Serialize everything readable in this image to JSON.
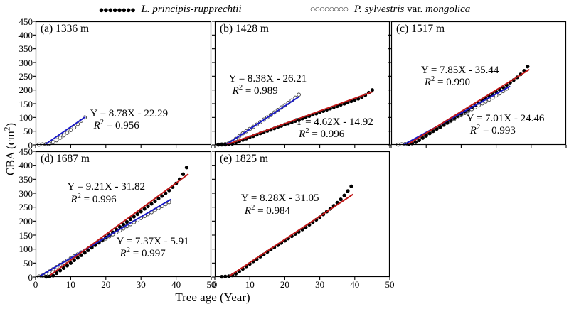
{
  "figure": {
    "x_axis_label": "Tree age (Year)",
    "y_axis_label_parts": {
      "pre": "CBA (cm",
      "sup": "2",
      "post": ")"
    }
  },
  "legend": {
    "entries": [
      {
        "marker": "filled-circles",
        "glyph": "●●●●●●●●",
        "label_parts": [
          {
            "text": "L. principis-rupprechtii",
            "italic": true
          }
        ]
      },
      {
        "marker": "open-circles",
        "glyph": "○○○○○○○○",
        "label_parts": [
          {
            "text": "P. sylvestris",
            "italic": true
          },
          {
            "text": " var. ",
            "italic": false
          },
          {
            "text": "mongolica",
            "italic": true
          }
        ]
      }
    ]
  },
  "colors": {
    "filled_series_line": "#c01818",
    "open_series_line": "#1818c8",
    "dot_fill": "#000000",
    "open_dot_stroke": "#4a4a4a",
    "axis": "#000000"
  },
  "chart_data": {
    "type": "scatter",
    "xlabel": "Tree age (Year)",
    "ylabel": "CBA (cm2)",
    "xlim": [
      0,
      50
    ],
    "ylim": [
      0,
      450
    ],
    "x_ticks": [
      0,
      10,
      20,
      30,
      40,
      50
    ],
    "y_ticks": [
      0,
      50,
      100,
      150,
      200,
      250,
      300,
      350,
      400,
      450
    ],
    "grid": false,
    "legend_position": "top-center",
    "panels": [
      {
        "id": "a",
        "title": "(a) 1336 m",
        "show_y_tick_labels": true,
        "show_x_tick_labels": false,
        "series": [
          {
            "name": "P. sylvestris var. mongolica",
            "marker": "open",
            "x_start": 1,
            "y": [
              1,
              2,
              3,
              5,
              10,
              17,
              26,
              35,
              44,
              54,
              64,
              76,
              88,
              100
            ],
            "fit": {
              "eq": "Y = 8.78X - 22.29",
              "r2": "0.956",
              "slope": 8.78,
              "intercept": -22.29,
              "x1": 2.8,
              "x2": 14.2,
              "label_pos": {
                "left": 0.31,
                "top": 0.7
              }
            }
          }
        ]
      },
      {
        "id": "b",
        "title": "(b) 1428 m",
        "show_y_tick_labels": false,
        "show_x_tick_labels": false,
        "series": [
          {
            "name": "P. sylvestris var. mongolica",
            "marker": "open",
            "x_start": 1,
            "y": [
              1,
              2,
              3,
              6,
              12,
              22,
              32,
              42,
              50,
              58,
              66,
              74,
              83,
              92,
              100,
              109,
              118,
              127,
              136,
              144,
              153,
              162,
              172,
              183
            ],
            "fit": {
              "eq": "Y = 8.38X - 26.21",
              "r2": "0.989",
              "slope": 8.38,
              "intercept": -26.21,
              "x1": 3.3,
              "x2": 24.2,
              "label_pos": {
                "left": 0.08,
                "top": 0.42
              }
            }
          },
          {
            "name": "L. principis-rupprechtii",
            "marker": "filled",
            "x_start": 1,
            "y": [
              1,
              1,
              1,
              2,
              4,
              8,
              13,
              18,
              23,
              28,
              32,
              37,
              42,
              46,
              51,
              55,
              60,
              65,
              69,
              74,
              78,
              82,
              87,
              92,
              96,
              101,
              105,
              110,
              114,
              119,
              123,
              128,
              132,
              137,
              141,
              146,
              150,
              155,
              159,
              164,
              168,
              174,
              181,
              190,
              200
            ],
            "fit": {
              "eq": "Y = 4.62X - 14.92",
              "r2": "0.996",
              "slope": 4.62,
              "intercept": -14.92,
              "x1": 3.4,
              "x2": 45,
              "label_pos": {
                "left": 0.46,
                "top": 0.77
              }
            }
          }
        ]
      },
      {
        "id": "c",
        "title": "(c) 1517 m",
        "show_y_tick_labels": false,
        "show_x_tick_labels": false,
        "series": [
          {
            "name": "P. sylvestris var. mongolica",
            "marker": "open",
            "x_start": 2,
            "y": [
              1,
              2,
              3,
              6,
              11,
              17,
              24,
              31,
              38,
              45,
              52,
              59,
              66,
              73,
              80,
              87,
              94,
              101,
              108,
              116,
              123,
              130,
              137,
              144,
              151,
              158,
              165,
              172,
              180,
              188,
              196,
              205
            ],
            "fit": {
              "eq": "Y = 7.01X - 24.46",
              "r2": "0.993",
              "slope": 7.01,
              "intercept": -24.46,
              "x1": 3.6,
              "x2": 34,
              "label_pos": {
                "left": 0.43,
                "top": 0.74
              }
            }
          },
          {
            "name": "L. principis-rupprechtii",
            "marker": "filled",
            "x_start": 5,
            "y": [
              2,
              5,
              10,
              17,
              25,
              33,
              42,
              50,
              58,
              65,
              73,
              81,
              89,
              97,
              105,
              113,
              121,
              129,
              137,
              145,
              153,
              161,
              169,
              177,
              185,
              193,
              201,
              210,
              218,
              227,
              236,
              246,
              257,
              270,
              285
            ],
            "fit": {
              "eq": "Y = 7.85X - 35.44",
              "r2": "0.990",
              "slope": 7.85,
              "intercept": -35.44,
              "x1": 4.8,
              "x2": 39.5,
              "label_pos": {
                "left": 0.17,
                "top": 0.35
              }
            }
          }
        ]
      },
      {
        "id": "d",
        "title": "(d) 1687 m",
        "show_y_tick_labels": true,
        "show_x_tick_labels": true,
        "series": [
          {
            "name": "P. sylvestris var. mongolica",
            "marker": "open",
            "x_start": 1,
            "y": [
              2,
              5,
              12,
              20,
              28,
              36,
              44,
              52,
              59,
              67,
              74,
              81,
              88,
              95,
              102,
              110,
              117,
              124,
              131,
              138,
              146,
              153,
              160,
              167,
              174,
              182,
              189,
              196,
              203,
              211,
              218,
              225,
              232,
              240,
              247,
              254,
              261,
              268
            ],
            "fit": {
              "eq": "Y = 7.37X - 5.91",
              "r2": "0.997",
              "slope": 7.37,
              "intercept": -5.91,
              "x1": 1.0,
              "x2": 38.5,
              "label_pos": {
                "left": 0.46,
                "top": 0.67
              }
            }
          },
          {
            "name": "L. principis-rupprechtii",
            "marker": "filled",
            "x_start": 3,
            "y": [
              1,
              2,
              5,
              14,
              23,
              32,
              41,
              50,
              60,
              69,
              78,
              87,
              96,
              105,
              114,
              123,
              133,
              142,
              151,
              160,
              170,
              179,
              188,
              197,
              207,
              216,
              225,
              234,
              244,
              253,
              262,
              271,
              281,
              290,
              300,
              310,
              322,
              335,
              350,
              368,
              392
            ],
            "fit": {
              "eq": "Y = 9.21X - 31.82",
              "r2": "0.996",
              "slope": 9.21,
              "intercept": -31.82,
              "x1": 4.1,
              "x2": 43.5,
              "label_pos": {
                "left": 0.18,
                "top": 0.24
              }
            }
          }
        ]
      },
      {
        "id": "e",
        "title": "(e) 1825 m",
        "show_y_tick_labels": false,
        "show_x_tick_labels": true,
        "series": [
          {
            "name": "L. principis-rupprechtii",
            "marker": "filled",
            "x_start": 2,
            "y": [
              1,
              2,
              3,
              6,
              12,
              20,
              29,
              38,
              47,
              56,
              64,
              73,
              81,
              90,
              98,
              106,
              114,
              122,
              130,
              138,
              146,
              154,
              162,
              170,
              178,
              187,
              196,
              205,
              214,
              224,
              234,
              244,
              255,
              266,
              278,
              292,
              308,
              325
            ],
            "fit": {
              "eq": "Y = 8.28X - 31.05",
              "r2": "0.984",
              "slope": 8.28,
              "intercept": -31.05,
              "x1": 4.0,
              "x2": 39.5,
              "label_pos": {
                "left": 0.15,
                "top": 0.33
              }
            }
          }
        ]
      }
    ]
  }
}
